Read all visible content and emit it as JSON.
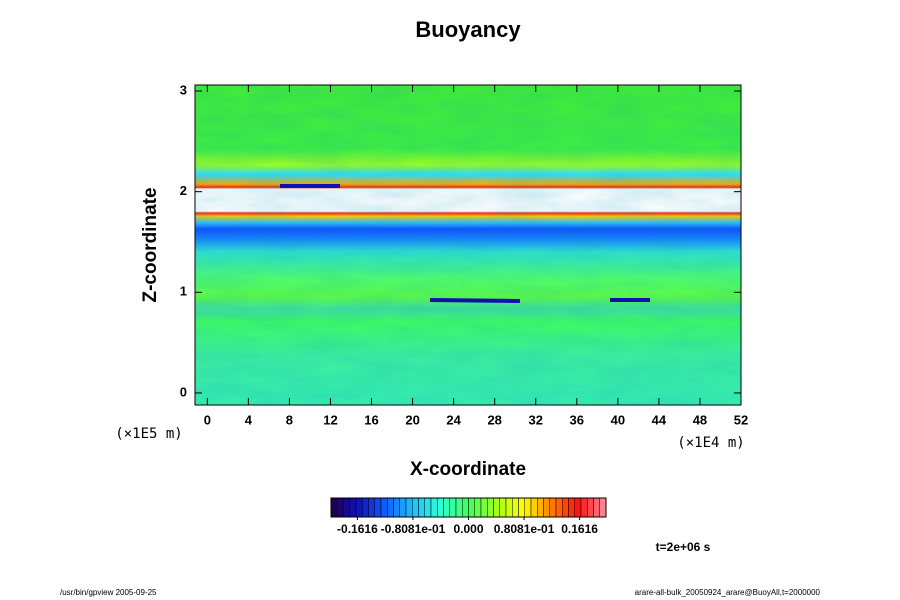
{
  "chart_data": {
    "type": "contour",
    "title": "Buoyancy",
    "x_label": "X-coordinate",
    "y_label": "Z-coordinate",
    "x_unit": "(×1E4 m)",
    "y_unit": "(×1E5 m)",
    "xlim": [
      -1.2,
      52
    ],
    "xticks": [
      0,
      4,
      8,
      12,
      16,
      20,
      24,
      28,
      32,
      36,
      40,
      44,
      48,
      52
    ],
    "ylim": [
      -0.12,
      3.06
    ],
    "yticks": [
      0,
      1,
      2,
      3
    ],
    "colorbar": {
      "lim": [
        -0.2,
        0.2
      ],
      "ticks": [
        -0.1616,
        {
          "value": -0.08081,
          "label": "-0.8081e-01"
        },
        {
          "value": 0,
          "label": "0.000"
        },
        {
          "value": 0.08081,
          "label": "0.8081e-01"
        },
        0.1616
      ],
      "colors": [
        "#200040",
        "#1010c0",
        "#1060ff",
        "#20c0ff",
        "#30ffd0",
        "#40ff60",
        "#a0ff20",
        "#ffff00",
        "#ff8000",
        "#ff1010",
        "#ff90a0"
      ]
    },
    "time_label": "t=2e+06 s",
    "footer_left": "/usr/bin/gpview 2005-09-25",
    "footer_right": "arare-all-bulk_20050924_arare@BuoyAll,t=2000000"
  }
}
